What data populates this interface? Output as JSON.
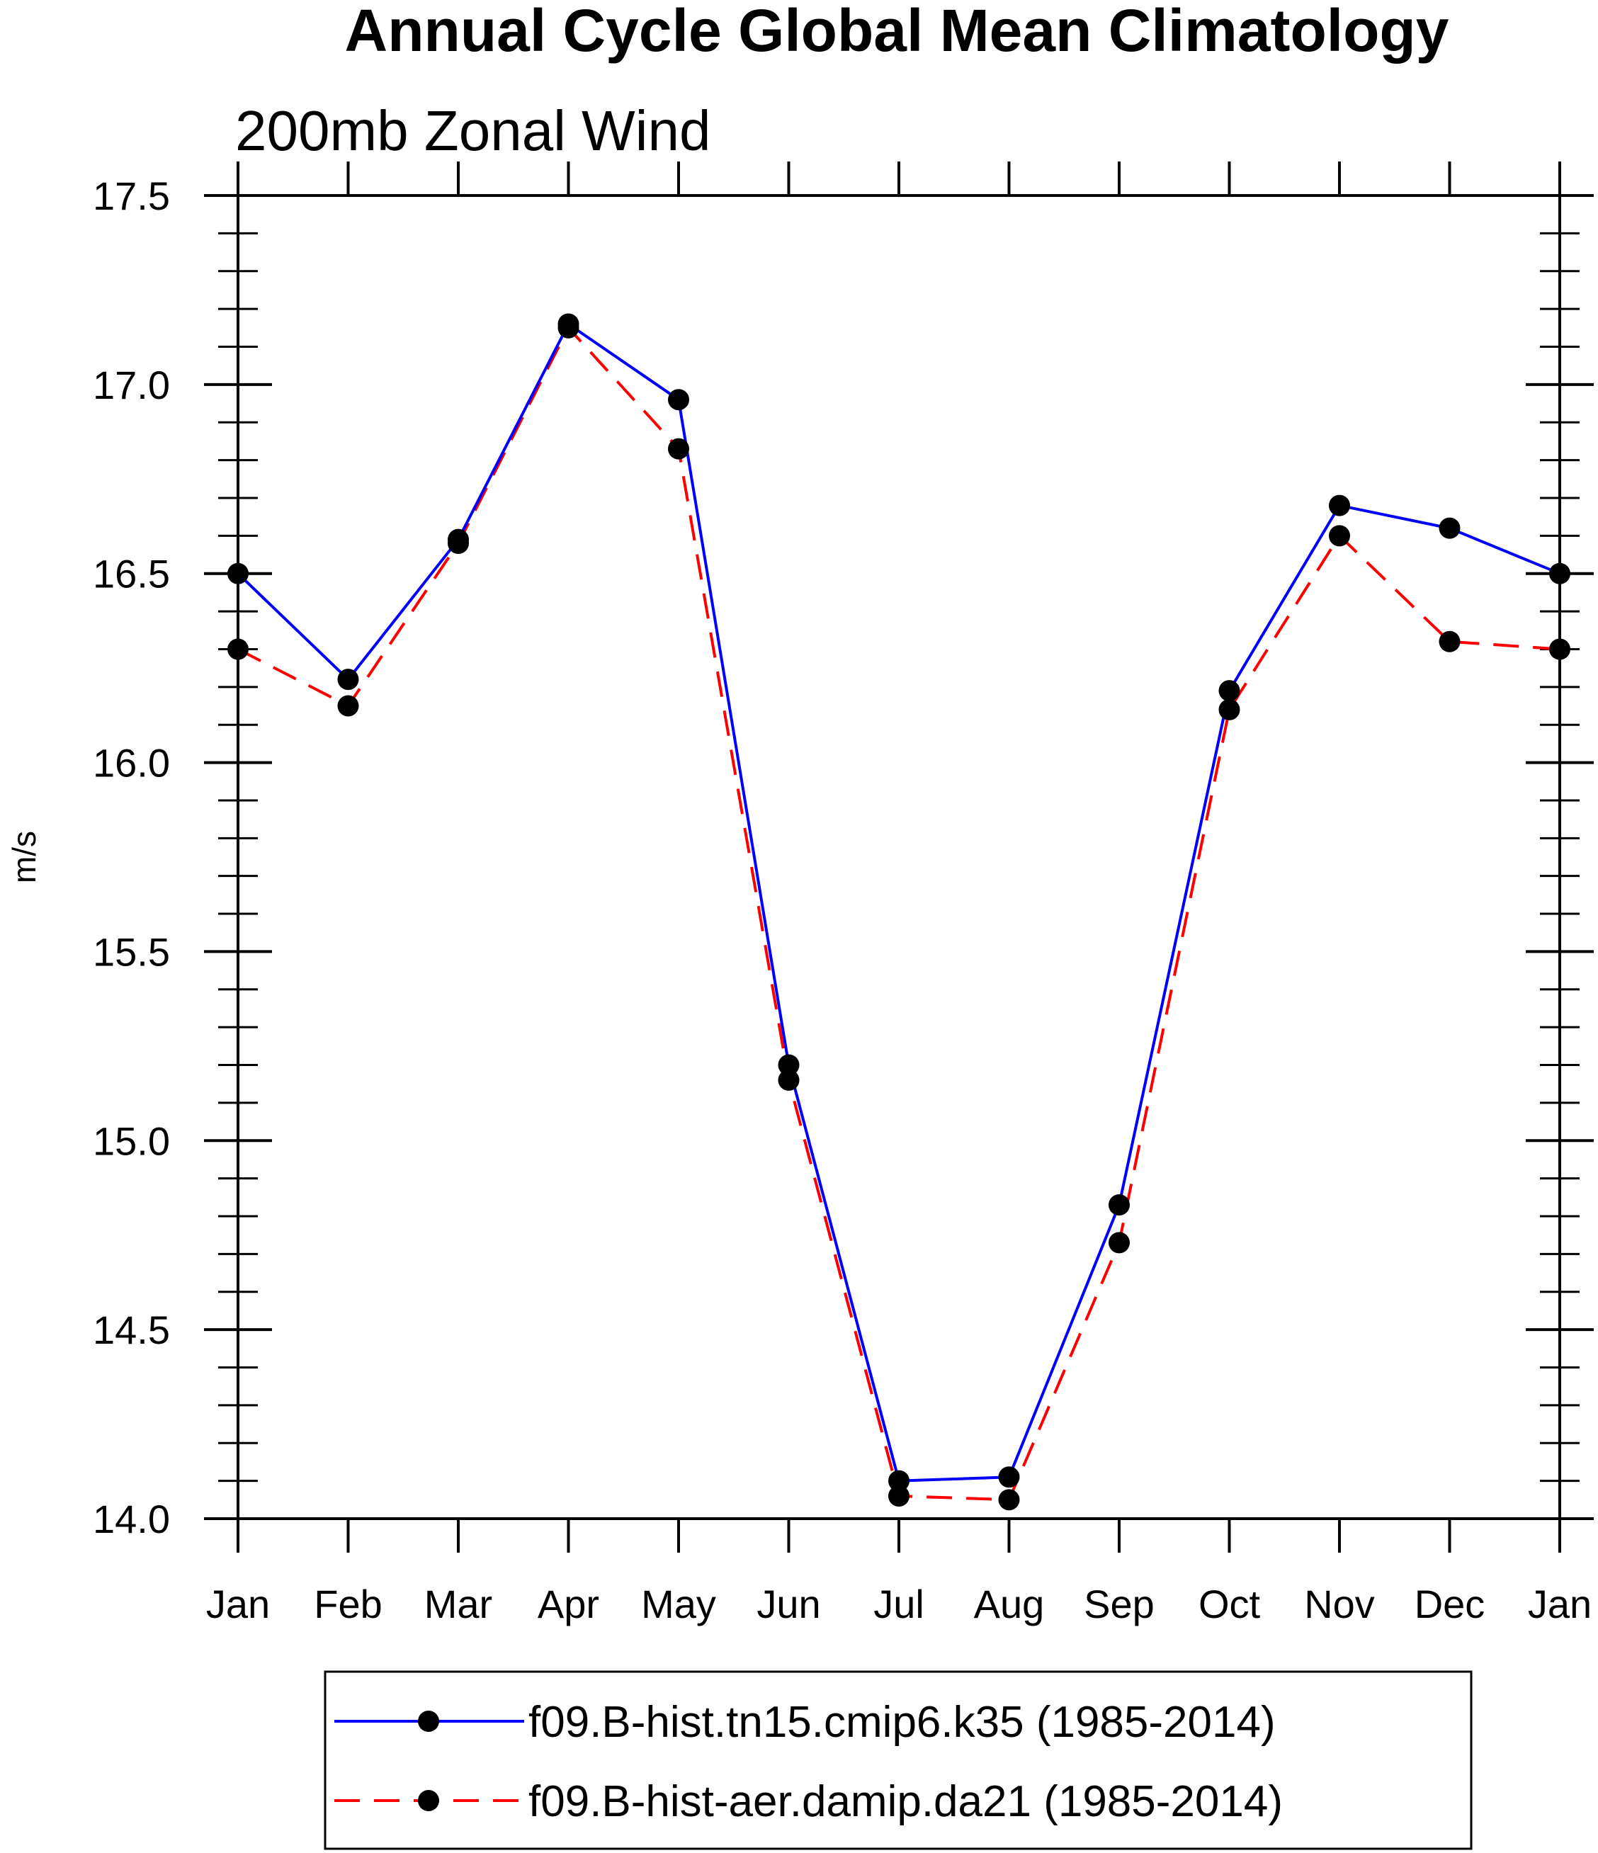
{
  "chart_data": {
    "type": "line",
    "title": "Annual Cycle Global Mean Climatology",
    "subtitle": "200mb Zonal Wind",
    "xlabel": "",
    "ylabel": "m/s",
    "categories": [
      "Jan",
      "Feb",
      "Mar",
      "Apr",
      "May",
      "Jun",
      "Jul",
      "Aug",
      "Sep",
      "Oct",
      "Nov",
      "Dec",
      "Jan"
    ],
    "ylim": [
      14.0,
      17.5
    ],
    "yticks": [
      "14.0",
      "14.5",
      "15.0",
      "15.5",
      "16.0",
      "16.5",
      "17.0",
      "17.5"
    ],
    "grid": false,
    "legend_position": "bottom",
    "series": [
      {
        "name": "f09.B-hist.tn15.cmip6.k35 (1985-2014)",
        "color": "#0000ff",
        "dash": "solid",
        "marker": "filled-circle",
        "values": [
          16.5,
          16.22,
          16.59,
          17.16,
          16.96,
          15.2,
          14.1,
          14.11,
          14.83,
          16.19,
          16.68,
          16.62,
          16.5
        ]
      },
      {
        "name": "f09.B-hist-aer.damip.da21 (1985-2014)",
        "color": "#ff0000",
        "dash": "dashed",
        "marker": "filled-circle",
        "values": [
          16.3,
          16.15,
          16.58,
          17.15,
          16.83,
          15.16,
          14.06,
          14.05,
          14.73,
          16.14,
          16.6,
          16.32,
          16.3
        ]
      }
    ]
  }
}
